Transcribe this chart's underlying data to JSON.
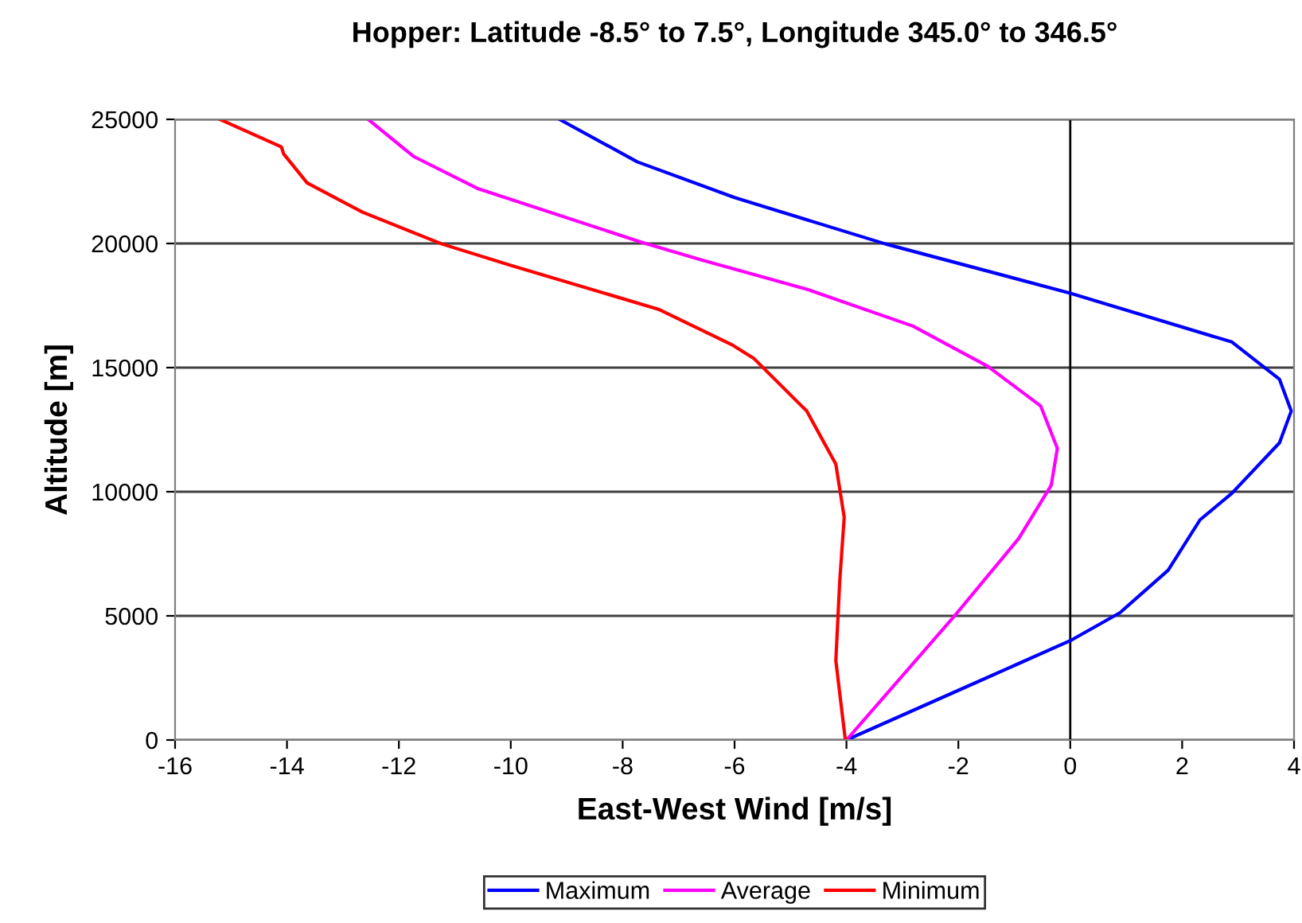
{
  "chart_data": {
    "type": "line",
    "title": "Hopper: Latitude -8.5° to 7.5°, Longitude 345.0° to 346.5°",
    "xlabel": "East-West Wind [m/s]",
    "ylabel": "Altitude [m]",
    "xlim": [
      -16,
      4
    ],
    "xticks": [
      -16,
      -14,
      -12,
      -10,
      -8,
      -6,
      -4,
      -2,
      0,
      2,
      4
    ],
    "ylim": [
      0,
      25000
    ],
    "yticks": [
      0,
      5000,
      10000,
      15000,
      20000,
      25000
    ],
    "grid": "y",
    "legend": "bottom",
    "marker": "none",
    "line_style": "solid",
    "ref_lines": [
      {
        "axis": "x",
        "value": 0,
        "color": "#000000"
      }
    ],
    "series": [
      {
        "name": "Maximum",
        "color": "#0000ff",
        "x": [
          -4,
          -1.86,
          0,
          0.89,
          1.75,
          2.32,
          2.89,
          3.74,
          3.95,
          3.74,
          2.89,
          0,
          -3.3,
          -6.0,
          -7.74,
          -9.13
        ],
        "values": [
          0,
          2140,
          4000,
          5130,
          6840,
          8870,
          9940,
          11970,
          13250,
          14530,
          16030,
          18000,
          19980,
          21850,
          23290,
          25000
        ]
      },
      {
        "name": "Average",
        "color": "#ff00ff",
        "x": [
          -4,
          -2.06,
          -0.92,
          -0.34,
          -0.23,
          -0.53,
          -1.48,
          -2.81,
          -4.71,
          -6.6,
          -7.65,
          -10.6,
          -11.74,
          -12.55
        ],
        "values": [
          0,
          5020,
          8120,
          10260,
          11750,
          13460,
          15060,
          16670,
          18160,
          19340,
          20040,
          22220,
          23510,
          25000
        ]
      },
      {
        "name": "Minimum",
        "color": "#ff0000",
        "x": [
          -4.02,
          -4.19,
          -4.12,
          -4.04,
          -4.19,
          -4.71,
          -5.66,
          -6.03,
          -7.36,
          -10.0,
          -11.23,
          -12.65,
          -13.64,
          -14.06,
          -14.1,
          -15.2
        ],
        "values": [
          0,
          3200,
          6410,
          8970,
          11110,
          13250,
          15380,
          15900,
          17350,
          19120,
          19980,
          21260,
          22440,
          23610,
          23890,
          25000
        ]
      }
    ]
  }
}
